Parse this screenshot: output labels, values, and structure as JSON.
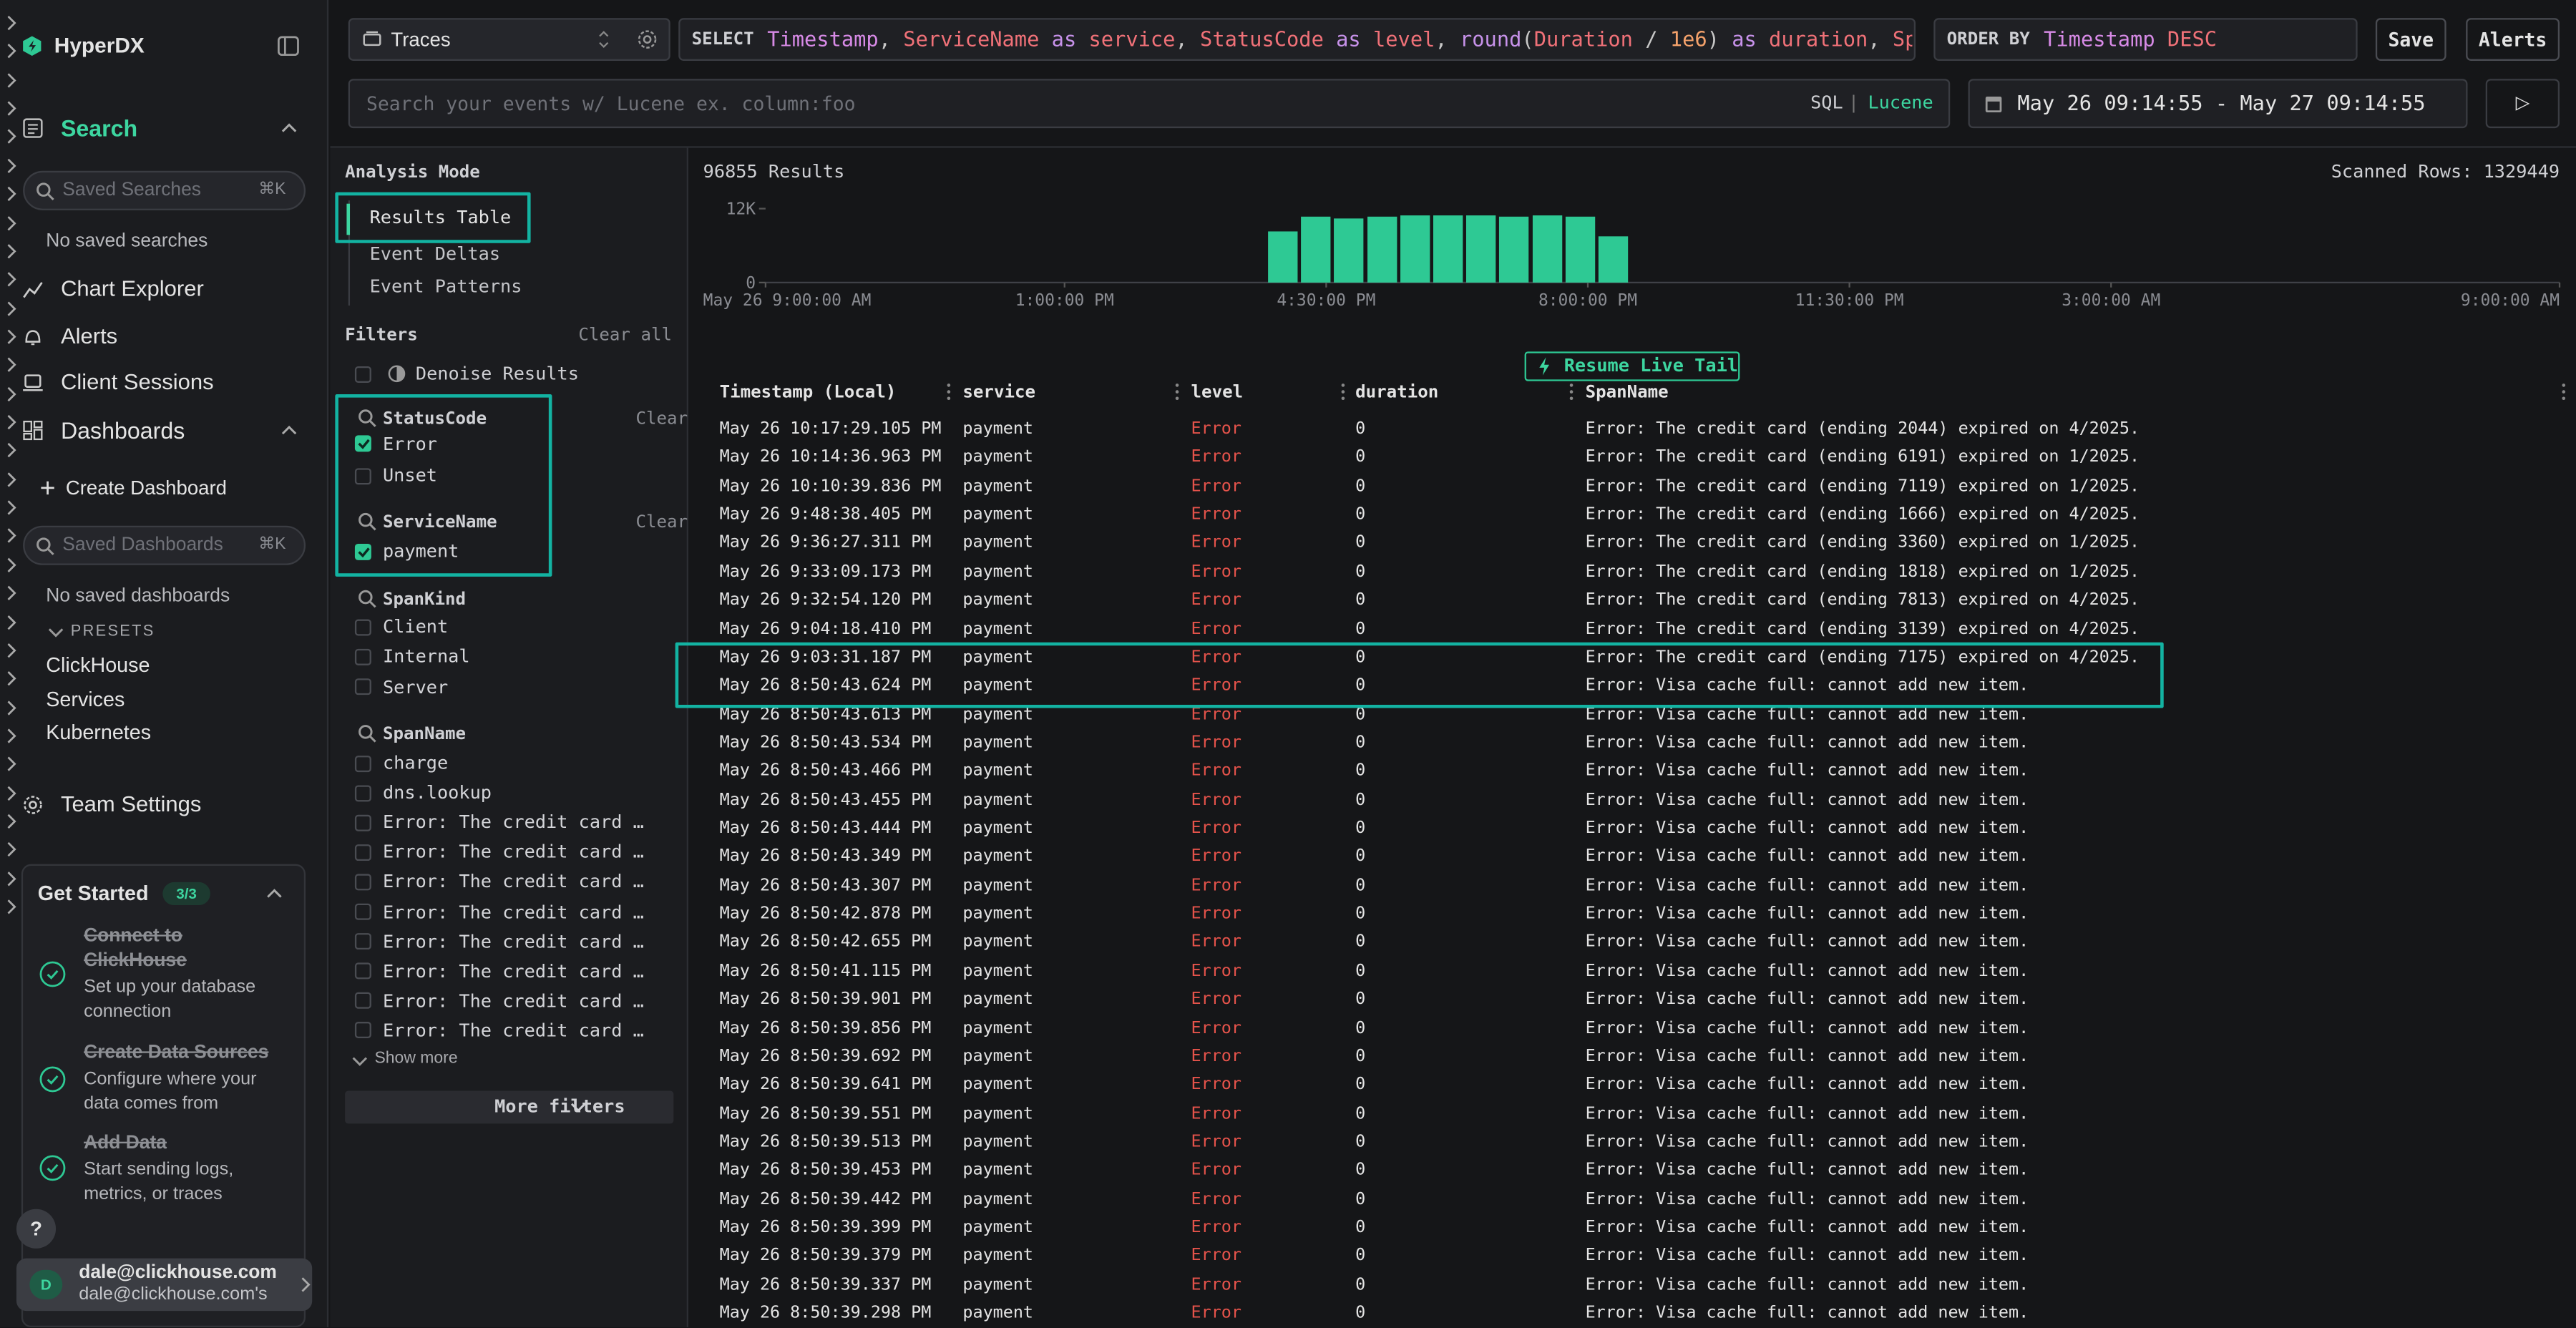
{
  "sidebar": {
    "brand": "HyperDX",
    "search": "Search",
    "saved_searches_placeholder": "Saved Searches",
    "searches_shortcut": "⌘K",
    "no_saved_searches": "No saved searches",
    "nav": [
      "Chart Explorer",
      "Alerts",
      "Client Sessions"
    ],
    "dashboards": "Dashboards",
    "create_dashboard": "Create Dashboard",
    "saved_dashboards_placeholder": "Saved Dashboards",
    "dashboards_shortcut": "⌘K",
    "no_saved_dashboards": "No saved dashboards",
    "presets_label": "PRESETS",
    "presets": [
      "ClickHouse",
      "Services",
      "Kubernetes"
    ],
    "team_settings": "Team Settings",
    "get_started": {
      "title": "Get Started",
      "progress": "3/3",
      "steps": [
        {
          "title": "Connect to ClickHouse",
          "description": "Set up your database connection"
        },
        {
          "title": "Create Data Sources",
          "description": "Configure where your data comes from"
        },
        {
          "title": "Add Data",
          "description": "Start sending logs, metrics, or traces"
        }
      ]
    },
    "help": "?",
    "user": {
      "initial": "D",
      "email": "dale@clickhouse.com",
      "team": "dale@clickhouse.com's"
    }
  },
  "toolbar": {
    "source": "Traces",
    "select_keyword": "SELECT",
    "select_tokens": [
      {
        "text": "Timestamp",
        "color": "#d78ae6"
      },
      {
        "text": ", ",
        "color": "#c8c8c8"
      },
      {
        "text": "ServiceName",
        "color": "#f07178"
      },
      {
        "text": " as ",
        "color": "#c792ea"
      },
      {
        "text": "service",
        "color": "#f07178"
      },
      {
        "text": ", ",
        "color": "#c8c8c8"
      },
      {
        "text": "StatusCode",
        "color": "#f07178"
      },
      {
        "text": " as ",
        "color": "#c792ea"
      },
      {
        "text": "level",
        "color": "#f07178"
      },
      {
        "text": ", ",
        "color": "#c8c8c8"
      },
      {
        "text": "round",
        "color": "#c792ea"
      },
      {
        "text": "(",
        "color": "#c8c8c8"
      },
      {
        "text": "Duration",
        "color": "#f07178"
      },
      {
        "text": " / ",
        "color": "#c8c8c8"
      },
      {
        "text": "1e6",
        "color": "#f5a26b"
      },
      {
        "text": ")",
        "color": "#c8c8c8"
      },
      {
        "text": " as ",
        "color": "#c792ea"
      },
      {
        "text": "duration",
        "color": "#f07178"
      },
      {
        "text": ", ",
        "color": "#c8c8c8"
      },
      {
        "text": "Span",
        "color": "#f07178"
      }
    ],
    "order_keyword": "ORDER BY",
    "order_tokens": [
      {
        "text": "Timestamp",
        "color": "#d78ae6"
      },
      {
        "text": " DESC",
        "color": "#f07178"
      }
    ],
    "save": "Save",
    "alerts": "Alerts",
    "search_placeholder": "Search your events w/ Lucene ex. column:foo",
    "sql": "SQL",
    "separator": "|",
    "lucene": "Lucene",
    "time_range": "May 26 09:14:55 - May 27 09:14:55",
    "run": "▷"
  },
  "analysis": {
    "title": "Analysis Mode",
    "modes": [
      "Results Table",
      "Event Deltas",
      "Event Patterns"
    ]
  },
  "filters": {
    "title": "Filters",
    "clear_all": "Clear all",
    "denoise": "Denoise Results",
    "groups": [
      {
        "name": "StatusCode",
        "clear": "Clear",
        "items": [
          {
            "label": "Error",
            "checked": true
          },
          {
            "label": "Unset",
            "checked": false
          }
        ]
      },
      {
        "name": "ServiceName",
        "clear": "Clear",
        "items": [
          {
            "label": "payment",
            "checked": true
          }
        ]
      },
      {
        "name": "SpanKind",
        "items": [
          {
            "label": "Client",
            "checked": false
          },
          {
            "label": "Internal",
            "checked": false
          },
          {
            "label": "Server",
            "checked": false
          }
        ]
      },
      {
        "name": "SpanName",
        "items": [
          {
            "label": "charge",
            "checked": false
          },
          {
            "label": "dns.lookup",
            "checked": false
          },
          {
            "label": "Error: The credit card …",
            "checked": false
          },
          {
            "label": "Error: The credit card …",
            "checked": false
          },
          {
            "label": "Error: The credit card …",
            "checked": false
          },
          {
            "label": "Error: The credit card …",
            "checked": false
          },
          {
            "label": "Error: The credit card …",
            "checked": false
          },
          {
            "label": "Error: The credit card …",
            "checked": false
          },
          {
            "label": "Error: The credit card …",
            "checked": false
          },
          {
            "label": "Error: The credit card …",
            "checked": false
          }
        ]
      }
    ],
    "show_more": "Show more",
    "more_filters": "More filters"
  },
  "results": {
    "count": "96855 Results",
    "scanned": "Scanned Rows: 1329449",
    "histogram": {
      "color": "#2ec994",
      "x": [
        6.92,
        7.36,
        7.8,
        8.25,
        8.69,
        9.13,
        9.57,
        10.01,
        10.46,
        10.9,
        11.34
      ],
      "values": [
        8300,
        10700,
        10400,
        10700,
        10900,
        10900,
        10900,
        10700,
        10900,
        10700,
        7500
      ],
      "xlim": [
        0,
        24
      ],
      "ylim": [
        0,
        12000
      ],
      "yticks": [
        {
          "value": 12000,
          "label": "12K"
        },
        0
      ],
      "xticks": [
        {
          "value": 0,
          "label": "May 26 9:00:00 AM"
        },
        {
          "value": 4,
          "label": "1:00:00 PM"
        },
        {
          "value": 7.5,
          "label": "4:30:00 PM"
        },
        {
          "value": 11,
          "label": "8:00:00 PM"
        },
        {
          "value": 14.5,
          "label": "11:30:00 PM"
        },
        {
          "value": 18,
          "label": "3:00:00 AM"
        },
        {
          "value": 24,
          "label": "9:00:00 AM"
        }
      ]
    },
    "live_tail": "Resume Live Tail",
    "table": {
      "columns": [
        "Timestamp (Local)",
        "service",
        "level",
        "duration",
        "SpanName"
      ],
      "rows": [
        [
          "May 26 10:17:29.105 PM",
          "payment",
          "Error",
          0,
          "Error: The credit card (ending 2044) expired on 4/2025."
        ],
        [
          "May 26 10:14:36.963 PM",
          "payment",
          "Error",
          0,
          "Error: The credit card (ending 6191) expired on 1/2025."
        ],
        [
          "May 26 10:10:39.836 PM",
          "payment",
          "Error",
          0,
          "Error: The credit card (ending 7119) expired on 1/2025."
        ],
        [
          "May 26 9:48:38.405 PM",
          "payment",
          "Error",
          0,
          "Error: The credit card (ending 1666) expired on 4/2025."
        ],
        [
          "May 26 9:36:27.311 PM",
          "payment",
          "Error",
          0,
          "Error: The credit card (ending 3360) expired on 1/2025."
        ],
        [
          "May 26 9:33:09.173 PM",
          "payment",
          "Error",
          0,
          "Error: The credit card (ending 1818) expired on 1/2025."
        ],
        [
          "May 26 9:32:54.120 PM",
          "payment",
          "Error",
          0,
          "Error: The credit card (ending 7813) expired on 4/2025."
        ],
        [
          "May 26 9:04:18.410 PM",
          "payment",
          "Error",
          0,
          "Error: The credit card (ending 3139) expired on 4/2025."
        ],
        [
          "May 26 9:03:31.187 PM",
          "payment",
          "Error",
          0,
          "Error: The credit card (ending 7175) expired on 4/2025."
        ],
        [
          "May 26 8:50:43.624 PM",
          "payment",
          "Error",
          0,
          "Error: Visa cache full: cannot add new item."
        ],
        [
          "May 26 8:50:43.613 PM",
          "payment",
          "Error",
          0,
          "Error: Visa cache full: cannot add new item."
        ],
        [
          "May 26 8:50:43.534 PM",
          "payment",
          "Error",
          0,
          "Error: Visa cache full: cannot add new item."
        ],
        [
          "May 26 8:50:43.466 PM",
          "payment",
          "Error",
          0,
          "Error: Visa cache full: cannot add new item."
        ],
        [
          "May 26 8:50:43.455 PM",
          "payment",
          "Error",
          0,
          "Error: Visa cache full: cannot add new item."
        ],
        [
          "May 26 8:50:43.444 PM",
          "payment",
          "Error",
          0,
          "Error: Visa cache full: cannot add new item."
        ],
        [
          "May 26 8:50:43.349 PM",
          "payment",
          "Error",
          0,
          "Error: Visa cache full: cannot add new item."
        ],
        [
          "May 26 8:50:43.307 PM",
          "payment",
          "Error",
          0,
          "Error: Visa cache full: cannot add new item."
        ],
        [
          "May 26 8:50:42.878 PM",
          "payment",
          "Error",
          0,
          "Error: Visa cache full: cannot add new item."
        ],
        [
          "May 26 8:50:42.655 PM",
          "payment",
          "Error",
          0,
          "Error: Visa cache full: cannot add new item."
        ],
        [
          "May 26 8:50:41.115 PM",
          "payment",
          "Error",
          0,
          "Error: Visa cache full: cannot add new item."
        ],
        [
          "May 26 8:50:39.901 PM",
          "payment",
          "Error",
          0,
          "Error: Visa cache full: cannot add new item."
        ],
        [
          "May 26 8:50:39.856 PM",
          "payment",
          "Error",
          0,
          "Error: Visa cache full: cannot add new item."
        ],
        [
          "May 26 8:50:39.692 PM",
          "payment",
          "Error",
          0,
          "Error: Visa cache full: cannot add new item."
        ],
        [
          "May 26 8:50:39.641 PM",
          "payment",
          "Error",
          0,
          "Error: Visa cache full: cannot add new item."
        ],
        [
          "May 26 8:50:39.551 PM",
          "payment",
          "Error",
          0,
          "Error: Visa cache full: cannot add new item."
        ],
        [
          "May 26 8:50:39.513 PM",
          "payment",
          "Error",
          0,
          "Error: Visa cache full: cannot add new item."
        ],
        [
          "May 26 8:50:39.453 PM",
          "payment",
          "Error",
          0,
          "Error: Visa cache full: cannot add new item."
        ],
        [
          "May 26 8:50:39.442 PM",
          "payment",
          "Error",
          0,
          "Error: Visa cache full: cannot add new item."
        ],
        [
          "May 26 8:50:39.399 PM",
          "payment",
          "Error",
          0,
          "Error: Visa cache full: cannot add new item."
        ],
        [
          "May 26 8:50:39.379 PM",
          "payment",
          "Error",
          0,
          "Error: Visa cache full: cannot add new item."
        ],
        [
          "May 26 8:50:39.337 PM",
          "payment",
          "Error",
          0,
          "Error: Visa cache full: cannot add new item."
        ],
        [
          "May 26 8:50:39.298 PM",
          "payment",
          "Error",
          0,
          "Error: Visa cache full: cannot add new item."
        ]
      ]
    }
  }
}
